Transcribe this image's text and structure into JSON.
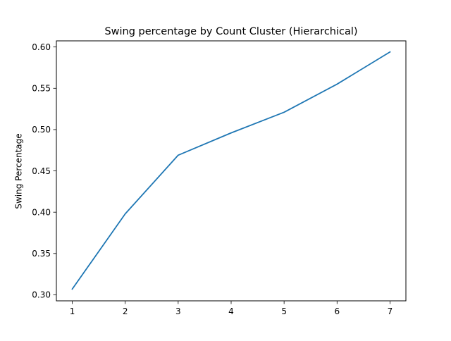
{
  "chart_data": {
    "type": "line",
    "title": "Swing percentage by Count Cluster (Hierarchical)",
    "xlabel": "",
    "ylabel": "Swing Percentage",
    "x": [
      1,
      2,
      3,
      4,
      5,
      6,
      7
    ],
    "series": [
      {
        "values": [
          0.307,
          0.398,
          0.469,
          0.496,
          0.521,
          0.555,
          0.594
        ],
        "color": "#1f77b4"
      }
    ],
    "xlim": [
      0.7,
      7.3
    ],
    "ylim": [
      0.2927,
      0.6074
    ],
    "xticks": [
      1,
      2,
      3,
      4,
      5,
      6,
      7
    ],
    "xtick_labels": [
      "1",
      "2",
      "3",
      "4",
      "5",
      "6",
      "7"
    ],
    "yticks": [
      0.3,
      0.35,
      0.4,
      0.45,
      0.5,
      0.55,
      0.6
    ],
    "ytick_labels": [
      "0.30",
      "0.35",
      "0.40",
      "0.45",
      "0.50",
      "0.55",
      "0.60"
    ],
    "grid": false,
    "legend": "none"
  }
}
